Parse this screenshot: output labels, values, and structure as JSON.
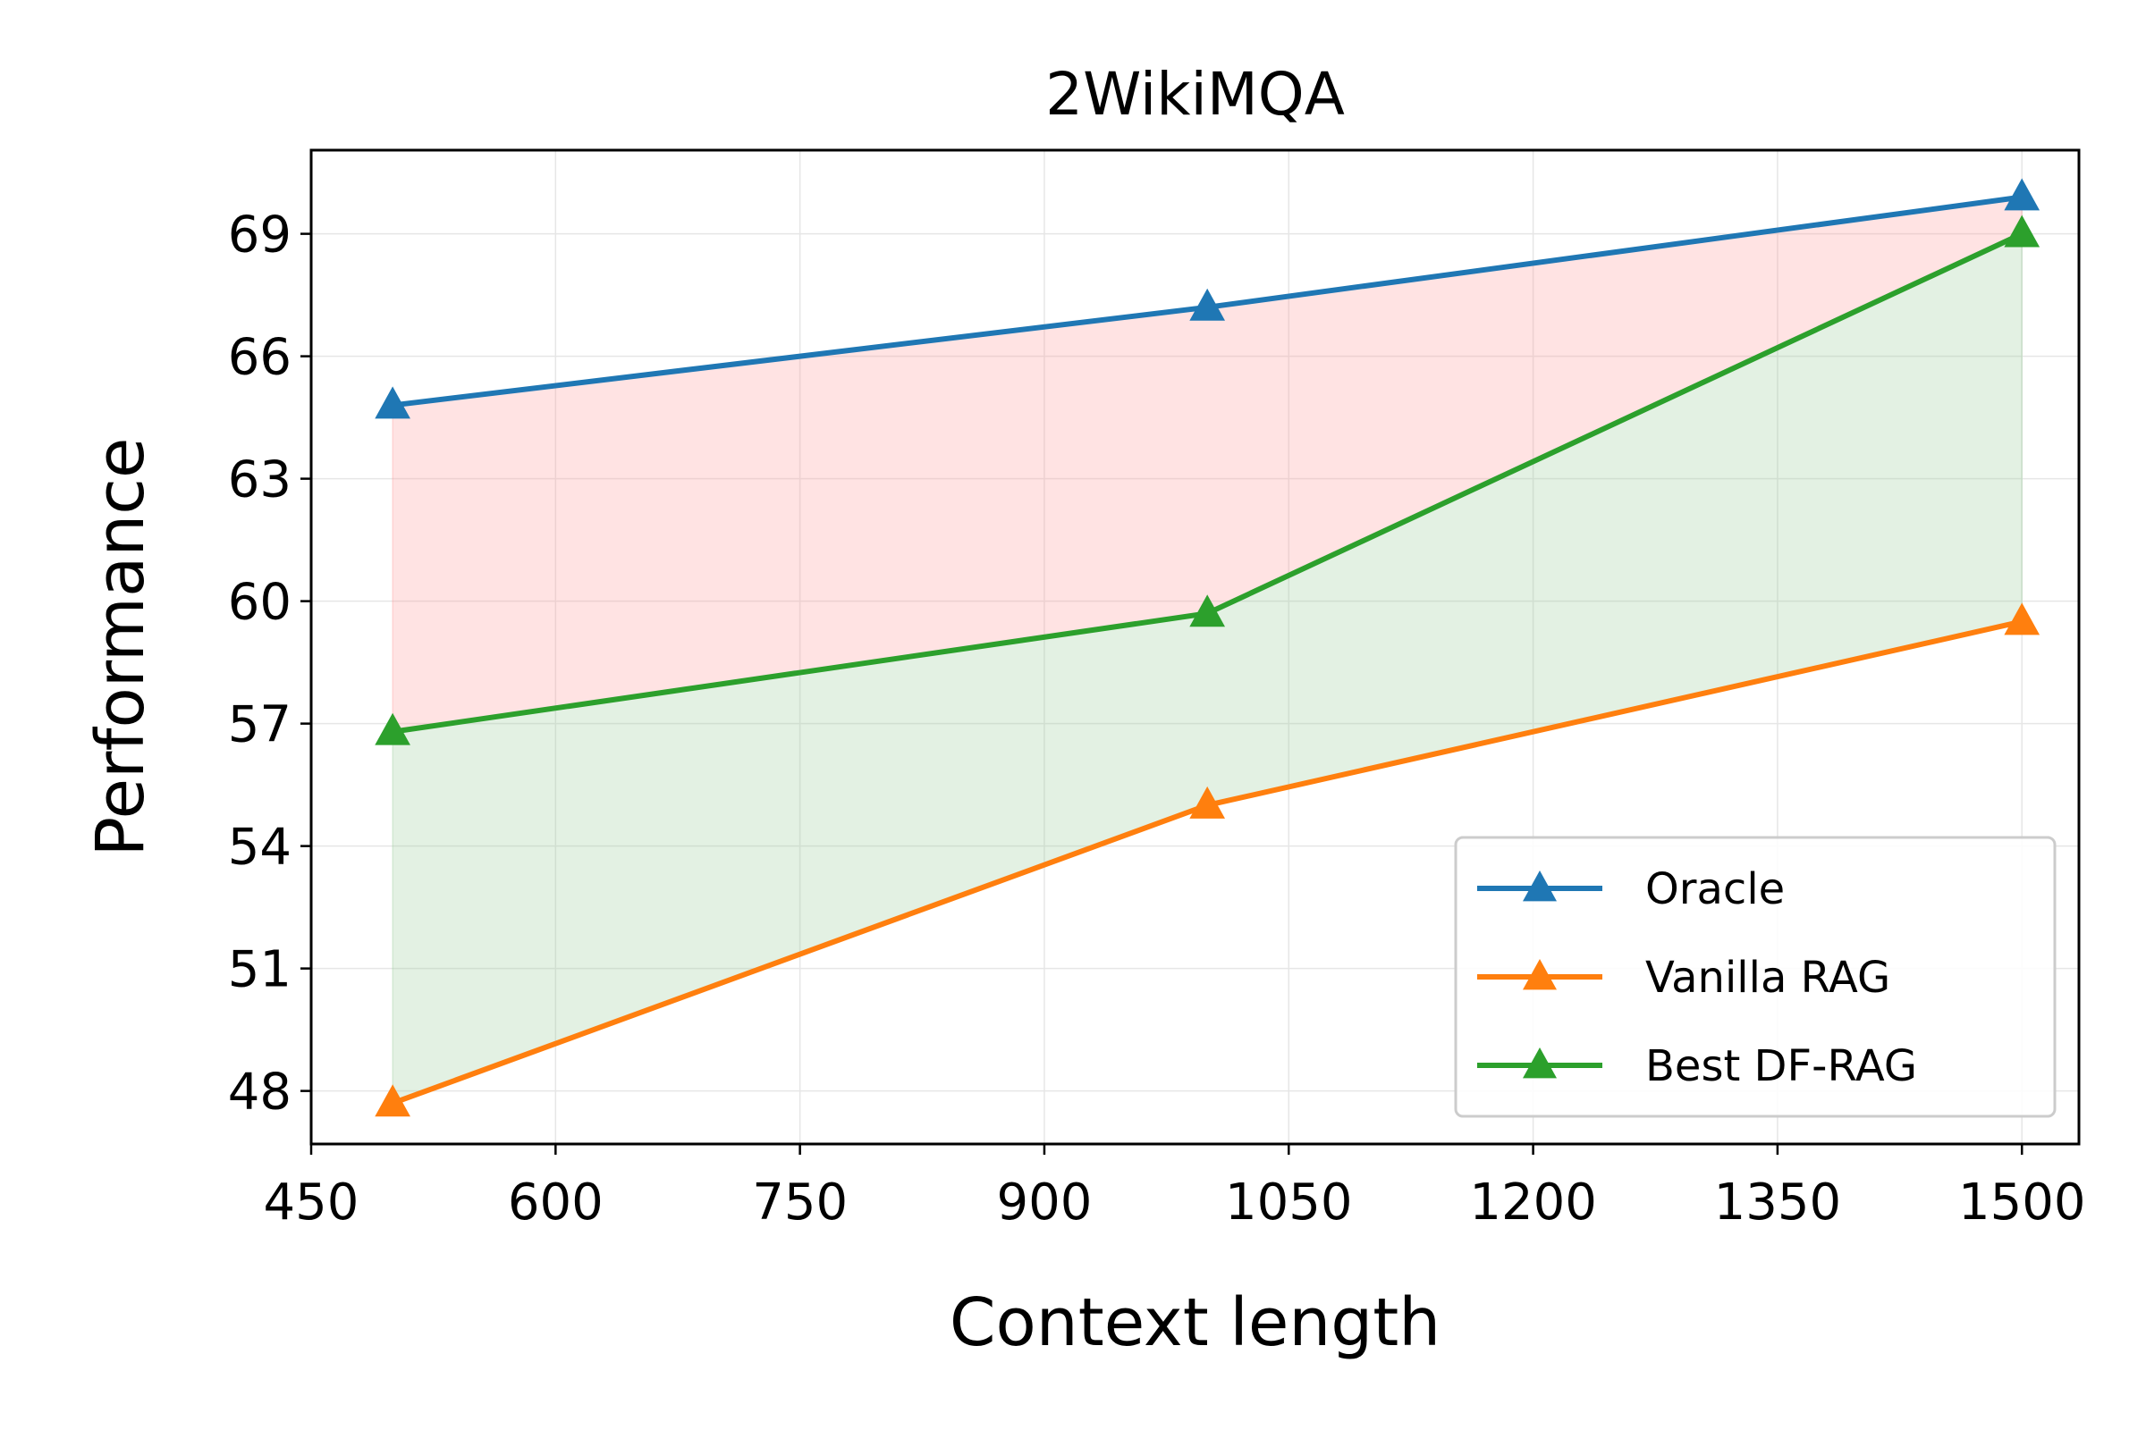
{
  "chart_data": {
    "type": "line",
    "title": "2WikiMQA",
    "xlabel": "Context length",
    "ylabel": "Performance",
    "xlim": [
      450,
      1535
    ],
    "ylim": [
      46.7,
      71.05
    ],
    "x_ticks": [
      450,
      600,
      750,
      900,
      1050,
      1200,
      1350,
      1500
    ],
    "y_ticks": [
      48,
      51,
      54,
      57,
      60,
      63,
      66,
      69
    ],
    "grid": true,
    "legend_position": "lower-right",
    "x": [
      500,
      1000,
      1500
    ],
    "series": [
      {
        "name": "Oracle",
        "color": "#1f77b4",
        "marker": "triangle",
        "values": [
          64.8,
          67.2,
          69.9
        ]
      },
      {
        "name": "Vanilla RAG",
        "color": "#ff7f0e",
        "marker": "triangle",
        "values": [
          47.7,
          55.0,
          59.5
        ]
      },
      {
        "name": "Best DF-RAG",
        "color": "#2ca02c",
        "marker": "triangle",
        "values": [
          56.8,
          59.7,
          69.0
        ]
      }
    ],
    "fills": [
      {
        "between": [
          "Oracle",
          "Best DF-RAG"
        ],
        "color": "#ff9999"
      },
      {
        "between": [
          "Best DF-RAG",
          "Vanilla RAG"
        ],
        "color": "#99cc99"
      }
    ]
  }
}
